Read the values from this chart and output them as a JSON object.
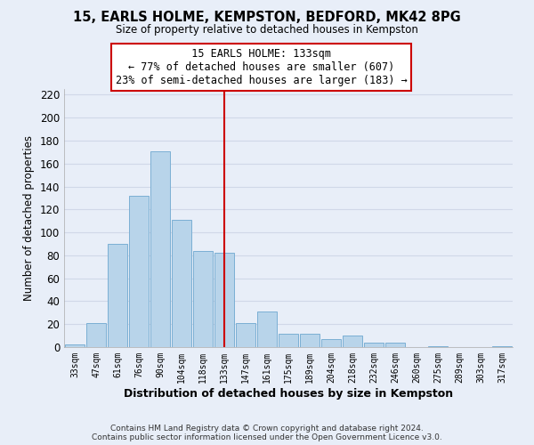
{
  "title": "15, EARLS HOLME, KEMPSTON, BEDFORD, MK42 8PG",
  "subtitle": "Size of property relative to detached houses in Kempston",
  "xlabel": "Distribution of detached houses by size in Kempston",
  "ylabel": "Number of detached properties",
  "bar_labels": [
    "33sqm",
    "47sqm",
    "61sqm",
    "76sqm",
    "90sqm",
    "104sqm",
    "118sqm",
    "133sqm",
    "147sqm",
    "161sqm",
    "175sqm",
    "189sqm",
    "204sqm",
    "218sqm",
    "232sqm",
    "246sqm",
    "260sqm",
    "275sqm",
    "289sqm",
    "303sqm",
    "317sqm"
  ],
  "bar_values": [
    2,
    21,
    90,
    132,
    171,
    111,
    84,
    82,
    21,
    31,
    12,
    12,
    7,
    10,
    4,
    4,
    0,
    1,
    0,
    0,
    1
  ],
  "bar_color": "#b8d4ea",
  "bar_edge_color": "#7bafd4",
  "vline_index": 7,
  "vline_color": "#cc0000",
  "annotation_title": "15 EARLS HOLME: 133sqm",
  "annotation_line1": "← 77% of detached houses are smaller (607)",
  "annotation_line2": "23% of semi-detached houses are larger (183) →",
  "annotation_box_facecolor": "#ffffff",
  "annotation_box_edgecolor": "#cc0000",
  "ylim": [
    0,
    225
  ],
  "yticks": [
    0,
    20,
    40,
    60,
    80,
    100,
    120,
    140,
    160,
    180,
    200,
    220
  ],
  "footer_line1": "Contains HM Land Registry data © Crown copyright and database right 2024.",
  "footer_line2": "Contains public sector information licensed under the Open Government Licence v3.0.",
  "background_color": "#e8eef8",
  "grid_color": "#d0d8e8",
  "plot_bg_color": "#e8eef8"
}
